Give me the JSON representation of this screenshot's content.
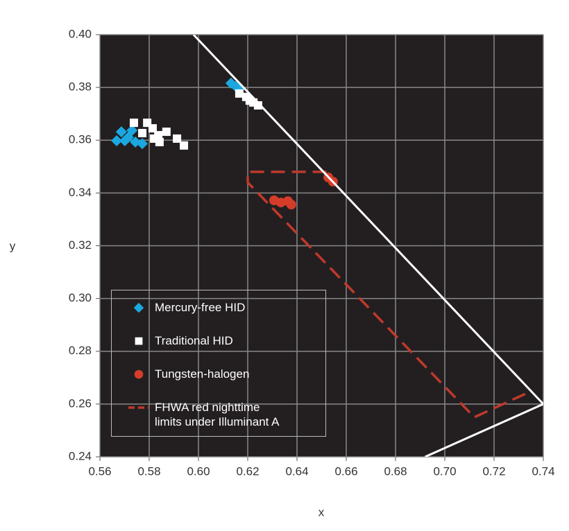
{
  "chart_data": {
    "type": "scatter",
    "xlabel": "x",
    "ylabel": "y",
    "xlim": [
      0.56,
      0.74
    ],
    "ylim": [
      0.24,
      0.4
    ],
    "xticks": [
      0.56,
      0.58,
      {
        "value": 0.6,
        "label": "0.60"
      },
      0.62,
      0.64,
      0.66,
      0.68,
      {
        "value": 0.7,
        "label": "0.70"
      },
      0.72,
      0.74
    ],
    "yticks": [
      0.24,
      0.26,
      0.28,
      {
        "value": 0.3,
        "label": "0.30"
      },
      0.32,
      0.34,
      0.36,
      0.38,
      {
        "value": 0.4,
        "label": "0.40"
      }
    ],
    "grid": true,
    "series": [
      {
        "name": "Mercury-free HID",
        "color": "#1ba8e0",
        "marker": "diamond",
        "x": [
          0.5668,
          0.5687,
          0.573,
          0.5701,
          0.5744,
          0.5772,
          0.5715,
          0.6132,
          0.6152,
          0.6166
        ],
        "y": [
          0.3598,
          0.3632,
          0.3637,
          0.3598,
          0.3593,
          0.3587,
          0.3611,
          0.3816,
          0.3803,
          0.3795
        ]
      },
      {
        "name": "Traditional HID",
        "color": "#ffffff",
        "marker": "square",
        "x": [
          0.5738,
          0.5792,
          0.5772,
          0.5814,
          0.5837,
          0.587,
          0.5913,
          0.5941,
          0.5842,
          0.582,
          0.6166,
          0.6194,
          0.6223,
          0.6242,
          0.6208
        ],
        "y": [
          0.3666,
          0.3666,
          0.3627,
          0.3645,
          0.3619,
          0.3632,
          0.3606,
          0.358,
          0.3593,
          0.3606,
          0.3777,
          0.3764,
          0.3743,
          0.3732,
          0.375
        ]
      },
      {
        "name": "Tungsten-halogen",
        "color": "#d63c2a",
        "marker": "circle",
        "x": [
          0.6307,
          0.6335,
          0.6363,
          0.6377,
          0.6527,
          0.6546
        ],
        "y": [
          0.3372,
          0.3364,
          0.3369,
          0.3356,
          0.3459,
          0.3443
        ]
      },
      {
        "name": [
          "FHWA red nighttime",
          "limits under Illuminant A"
        ],
        "color": "#c0392b",
        "marker": "dashed-line",
        "x": [
          0.652,
          0.62,
          0.62,
          0.712,
          0.733
        ],
        "y": [
          0.348,
          0.348,
          0.344,
          0.255,
          0.264
        ]
      },
      {
        "color": "#ffffff",
        "marker": "line",
        "x": [
          0.598,
          0.74,
          0.692
        ],
        "y": [
          0.4,
          0.26,
          0.24
        ]
      }
    ],
    "legend": "lower-left",
    "background": "#231f20"
  }
}
